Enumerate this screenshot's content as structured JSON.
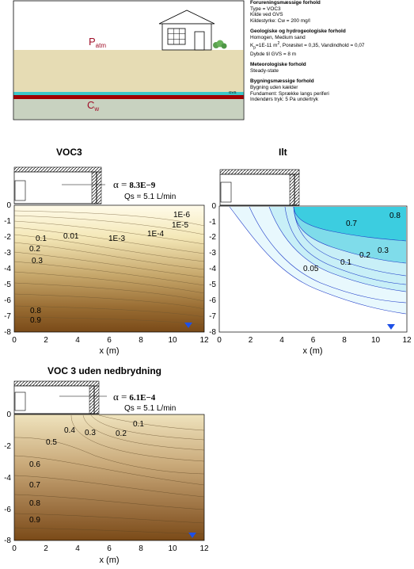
{
  "header": {
    "p_atm_label": "P",
    "p_atm_sub": "atm",
    "cw_label": "C",
    "cw_sub": "w",
    "gvs_label": "GVS"
  },
  "info": {
    "contamination": {
      "heading": "Forureningsmæssige forhold",
      "lines": [
        "Type = VOC3",
        "Kilde ved GVS",
        "Kildestyrke: Cw = 200 mg/l"
      ]
    },
    "geology": {
      "heading": "Geologiske og hydrogeologiske forhold",
      "line1": "Homogen, Medium sand",
      "line2_prefix": "K",
      "line2_sub": "p",
      "line2_mid": "=1E-11 m",
      "line2_sup": "2",
      "line2_suffix": ", Porøsitet = 0,35, Vandindhold = 0,07",
      "line3": "Dybde til GVS = 8 m"
    },
    "meteorology": {
      "heading": "Meteorologiske forhold",
      "lines": [
        "Steady-state"
      ]
    },
    "building": {
      "heading": "Bygningsmæssige forhold",
      "lines": [
        "Bygning uden kælder",
        "Fundament: Sprække langs periferi",
        "Indendørs tryk: 5 Pa undertryk"
      ]
    }
  },
  "panels": {
    "voc3": {
      "title": "VOC3",
      "alpha_symbol": "α =",
      "alpha_value": "8.3E−9",
      "qs": "Qs = 5.1 L/min",
      "xlabel": "x (m)",
      "contour_labels": [
        "1E-6",
        "1E-5",
        "1E-4",
        "1E-3",
        "0.01",
        "0.1",
        "0.2",
        "0.3",
        "0.8",
        "0.9"
      ]
    },
    "ilt": {
      "title": "Ilt",
      "xlabel": "x (m)",
      "contour_labels": [
        "0.8",
        "0.7",
        "0.3",
        "0.2",
        "0.1",
        "0.05"
      ]
    },
    "voc3_nodeg": {
      "title": "VOC 3 uden nedbrydning",
      "alpha_symbol": "α =",
      "alpha_value": "6.1E−4",
      "qs": "Qs = 5.1 L/min",
      "xlabel": "x (m)",
      "contour_labels": [
        "0.1",
        "0.2",
        "0.3",
        "0.4",
        "0.5",
        "0.6",
        "0.7",
        "0.8",
        "0.9"
      ]
    }
  },
  "chart_data": [
    {
      "type": "heatmap",
      "title": "VOC3",
      "xlabel": "x (m)",
      "ylabel": "",
      "xlim": [
        0,
        12
      ],
      "ylim": [
        -8,
        0
      ],
      "xticks": [
        0,
        2,
        4,
        6,
        8,
        10,
        12
      ],
      "yticks": [
        0,
        -1,
        -2,
        -3,
        -4,
        -5,
        -6,
        -7,
        -8
      ],
      "contour_levels": [
        "1E-6",
        "1E-5",
        "1E-4",
        "1E-3",
        "0.01",
        "0.1",
        "0.2",
        "0.3",
        "0.8",
        "0.9"
      ]
    },
    {
      "type": "heatmap",
      "title": "Ilt",
      "xlabel": "x (m)",
      "ylabel": "",
      "xlim": [
        0,
        12
      ],
      "ylim": [
        -8,
        0
      ],
      "xticks": [
        0,
        2,
        4,
        6,
        8,
        10,
        12
      ],
      "yticks": [
        0,
        -1,
        -2,
        -3,
        -4,
        -5,
        -6,
        -7,
        -8
      ],
      "contour_levels": [
        "0.05",
        "0.1",
        "0.2",
        "0.3",
        "0.7",
        "0.8"
      ]
    },
    {
      "type": "heatmap",
      "title": "VOC 3 uden nedbrydning",
      "xlabel": "x (m)",
      "ylabel": "",
      "xlim": [
        0,
        12
      ],
      "ylim": [
        -8,
        0
      ],
      "xticks": [
        0,
        2,
        4,
        6,
        8,
        10,
        12
      ],
      "yticks": [
        0,
        -2,
        -4,
        -6,
        -8
      ],
      "contour_levels": [
        "0.1",
        "0.2",
        "0.3",
        "0.4",
        "0.5",
        "0.6",
        "0.7",
        "0.8",
        "0.9"
      ]
    }
  ],
  "colors": {
    "sky": "#ffffff",
    "soil": "#e6dcb4",
    "aquifer": "#c8d2c0",
    "water_line": "#3cc8c8",
    "red_layer": "#a00000",
    "label_red": "#a0102a",
    "voc_light": "#fffae6",
    "voc_dark": "#7a4a18",
    "ilt_light": "#ecfaff",
    "ilt_dark": "#3ccde0",
    "ilt_line": "#1e3cc8",
    "marker": "#1e50e6"
  }
}
